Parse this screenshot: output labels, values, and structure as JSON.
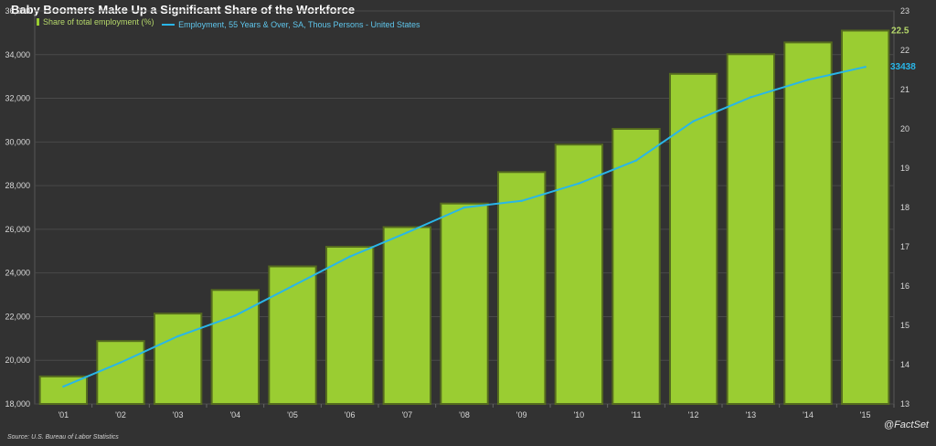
{
  "title": "Baby Boomers Make Up a Significant Share of the Workforce",
  "legend": {
    "bar_label": "Share of total employment (%)",
    "line_label": "Employment, 55 Years & Over, SA, Thous Persons - United States"
  },
  "source": "Source: U.S. Bureau of Labor Statistics",
  "brand": "@FactSet",
  "colors": {
    "background": "#323232",
    "bar_fill": "#9acd32",
    "bar_stroke": "#556b1f",
    "line": "#29b6e8",
    "grid": "#4a4a4a",
    "tick_text": "#d8d8d8",
    "bar_label": "#b5d86a",
    "line_label": "#29b6e8"
  },
  "chart_data": {
    "type": "bar",
    "title": "Baby Boomers Make Up a Significant Share of the Workforce",
    "categories": [
      "'01",
      "'02",
      "'03",
      "'04",
      "'05",
      "'06",
      "'07",
      "'08",
      "'09",
      "'10",
      "'11",
      "'12",
      "'13",
      "'14",
      "'15"
    ],
    "y_left": {
      "ticks": [
        "18,000",
        "20,000",
        "22,000",
        "24,000",
        "26,000",
        "28,000",
        "30,000",
        "32,000",
        "34,000",
        "36,000"
      ],
      "range": [
        18000,
        36000
      ]
    },
    "y_right": {
      "ticks": [
        "13",
        "14",
        "15",
        "16",
        "17",
        "18",
        "19",
        "20",
        "21",
        "22",
        "23"
      ],
      "range": [
        13,
        23
      ]
    },
    "series": [
      {
        "name": "Share of total employment (%)",
        "kind": "bar",
        "axis": "right",
        "values": [
          13.7,
          14.6,
          15.3,
          15.9,
          16.5,
          17.0,
          17.5,
          18.1,
          18.9,
          19.6,
          20.0,
          21.4,
          21.9,
          22.2,
          22.5
        ],
        "last_label": "22.5"
      },
      {
        "name": "Employment, 55 Years & Over, SA, Thous Persons - United States",
        "kind": "line",
        "axis": "left",
        "values": [
          18800,
          19900,
          21100,
          22050,
          23400,
          24750,
          25850,
          27000,
          27300,
          28100,
          29150,
          30950,
          32050,
          32850,
          33438
        ],
        "last_label": "33438"
      }
    ],
    "grid": true,
    "legend_position": "top-left"
  }
}
